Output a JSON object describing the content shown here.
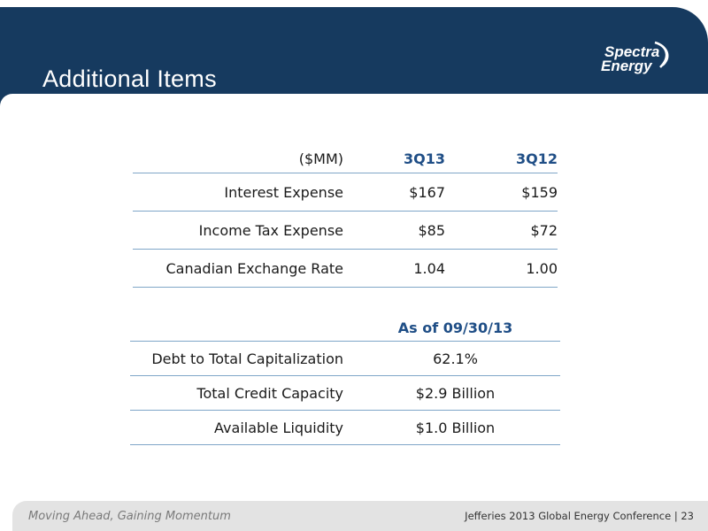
{
  "header": {
    "title": "Additional Items",
    "logo_line1": "Spectra",
    "logo_line2": "Energy"
  },
  "table1": {
    "unit_label": "($MM)",
    "columns": [
      "3Q13",
      "3Q12"
    ],
    "rows": [
      {
        "label": "Interest Expense",
        "values": [
          "$167",
          "$159"
        ]
      },
      {
        "label": "Income Tax Expense",
        "values": [
          "$85",
          "$72"
        ]
      },
      {
        "label": "Canadian Exchange Rate",
        "values": [
          "1.04",
          "1.00"
        ]
      }
    ]
  },
  "table2": {
    "column": "As of 09/30/13",
    "rows": [
      {
        "label": "Debt to Total Capitalization",
        "value": "62.1%"
      },
      {
        "label": "Total Credit Capacity",
        "value": "$2.9 Billion"
      },
      {
        "label": "Available Liquidity",
        "value": "$1.0 Billion"
      }
    ]
  },
  "footer": {
    "tagline": "Moving Ahead, Gaining Momentum",
    "conference": "Jefferies 2013 Global Energy Conference | 23"
  },
  "colors": {
    "header_bg": "#163a5f",
    "accent_text": "#1f4e86",
    "rule": "#7fa6c8",
    "footer_bg": "#e3e3e3"
  },
  "icons": {
    "logo": "spectra-energy-logo-swoosh"
  }
}
